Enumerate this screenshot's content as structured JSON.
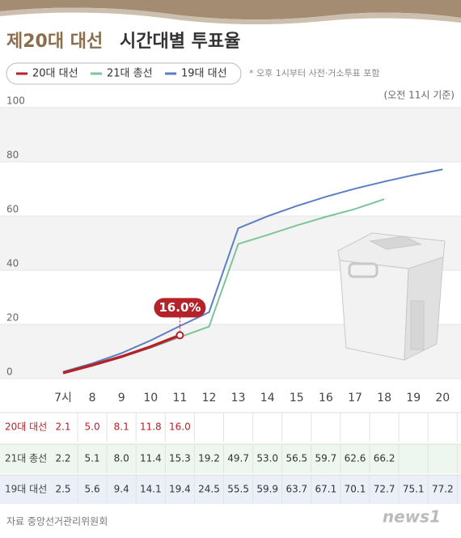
{
  "chart_data": {
    "type": "line",
    "title": [
      "제20대 대선",
      "시간대별 투표율"
    ],
    "note": "* 오후 1시부터 사전·거소투표 포함",
    "subtitle": "(오전 11시 기준)",
    "annotation": "16.0%",
    "source": "자료 중앙선거관리위원회",
    "logo": "news1",
    "categories": [
      "7시",
      "8",
      "9",
      "10",
      "11",
      "12",
      "13",
      "14",
      "15",
      "16",
      "17",
      "18",
      "19",
      "20"
    ],
    "series": [
      {
        "name": "20대 대선",
        "color": "#b5232a",
        "values": [
          2.1,
          5.0,
          8.1,
          11.8,
          16.0,
          null,
          null,
          null,
          null,
          null,
          null,
          null,
          null,
          null
        ],
        "value_labels": [
          "2.1",
          "5.0",
          "8.1",
          "11.8",
          "16.0",
          null,
          null,
          null,
          null,
          null,
          null,
          null,
          null,
          null
        ]
      },
      {
        "name": "21대 총선",
        "color": "#7cc49a",
        "values": [
          2.2,
          5.1,
          8.0,
          11.4,
          15.3,
          19.2,
          49.7,
          53.0,
          56.5,
          59.7,
          62.6,
          66.2,
          null,
          null
        ],
        "value_labels": [
          "2.2",
          "5.1",
          "8.0",
          "11.4",
          "15.3",
          "19.2",
          "49.7",
          "53.0",
          "56.5",
          "59.7",
          "62.6",
          "66.2",
          null,
          null
        ]
      },
      {
        "name": "19대 대선",
        "color": "#5b7fc4",
        "values": [
          2.5,
          5.6,
          9.4,
          14.1,
          19.4,
          24.5,
          55.5,
          59.9,
          63.7,
          67.1,
          70.1,
          72.7,
          75.1,
          77.2
        ],
        "value_labels": [
          "2.5",
          "5.6",
          "9.4",
          "14.1",
          "19.4",
          "24.5",
          "55.5",
          "59.9",
          "63.7",
          "67.1",
          "70.1",
          "72.7",
          "75.1",
          "77.2"
        ]
      }
    ],
    "ylim": [
      0,
      100
    ],
    "yticks": [
      0,
      20,
      40,
      60,
      80,
      100
    ],
    "grid": true
  }
}
